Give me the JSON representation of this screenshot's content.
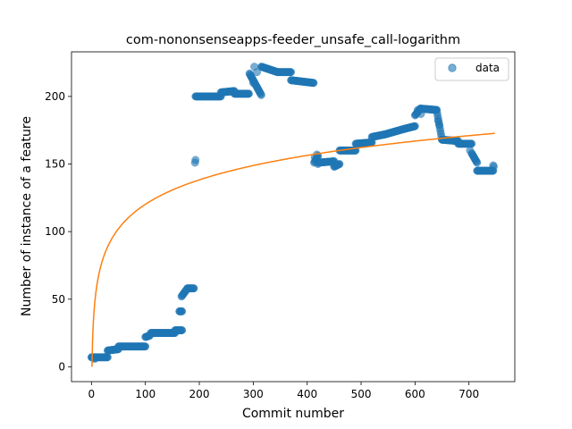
{
  "chart_data": {
    "type": "scatter",
    "title": "com-nononsenseapps-feeder_unsafe_call-logarithm",
    "xlabel": "Commit number",
    "ylabel": "Number of instance of a feature",
    "xlim": [
      -37,
      785
    ],
    "ylim": [
      -11,
      233
    ],
    "xticks": [
      0,
      100,
      200,
      300,
      400,
      500,
      600,
      700
    ],
    "yticks": [
      0,
      50,
      100,
      150,
      200
    ],
    "grid": false,
    "legend": {
      "position": "top-right",
      "entries": [
        "data"
      ]
    },
    "colors": {
      "data": "#1f77b4",
      "fit": "#ff7f0e"
    },
    "series": [
      {
        "name": "data",
        "kind": "scatter",
        "segments": [
          [
            0,
            7,
            30,
            7
          ],
          [
            30,
            12,
            50,
            13
          ],
          [
            50,
            15,
            100,
            15
          ],
          [
            100,
            22,
            108,
            23
          ],
          [
            110,
            25,
            155,
            25
          ],
          [
            155,
            27,
            168,
            27
          ],
          [
            163,
            41,
            168,
            41
          ],
          [
            167,
            52,
            178,
            58
          ],
          [
            178,
            58,
            190,
            58
          ],
          [
            192,
            151,
            193,
            153
          ],
          [
            193,
            200,
            240,
            200
          ],
          [
            240,
            203,
            265,
            204
          ],
          [
            265,
            202,
            292,
            202
          ],
          [
            293,
            217,
            315,
            201
          ],
          [
            315,
            222,
            345,
            218
          ],
          [
            345,
            218,
            370,
            218
          ],
          [
            370,
            212,
            412,
            210
          ],
          [
            413,
            151,
            420,
            156
          ],
          [
            420,
            151,
            450,
            152
          ],
          [
            450,
            148,
            460,
            150
          ],
          [
            460,
            160,
            490,
            160
          ],
          [
            490,
            165,
            520,
            166
          ],
          [
            520,
            170,
            545,
            172
          ],
          [
            545,
            172,
            580,
            176
          ],
          [
            580,
            176,
            600,
            178
          ],
          [
            600,
            186,
            610,
            191
          ],
          [
            610,
            191,
            640,
            190
          ],
          [
            640,
            190,
            650,
            168
          ],
          [
            650,
            168,
            680,
            167
          ],
          [
            680,
            165,
            705,
            165
          ],
          [
            705,
            158,
            715,
            151
          ],
          [
            715,
            145,
            745,
            145
          ]
        ],
        "extra_points": [
          [
            1,
            7
          ],
          [
            2,
            7
          ],
          [
            5,
            6
          ],
          [
            7,
            6
          ],
          [
            300,
            210
          ],
          [
            302,
            222
          ],
          [
            307,
            218
          ],
          [
            414,
            155
          ],
          [
            418,
            157
          ],
          [
            643,
            182
          ],
          [
            645,
            179
          ],
          [
            702,
            160
          ],
          [
            745,
            149
          ],
          [
            746,
            148
          ],
          [
            420,
            150
          ],
          [
            611,
            187
          ],
          [
            605,
            190
          ]
        ]
      },
      {
        "name": "",
        "kind": "line",
        "model": "logarithmic",
        "coefficients": {
          "a": 26.1,
          "b": 0
        },
        "x_range": [
          1,
          748
        ]
      }
    ]
  }
}
